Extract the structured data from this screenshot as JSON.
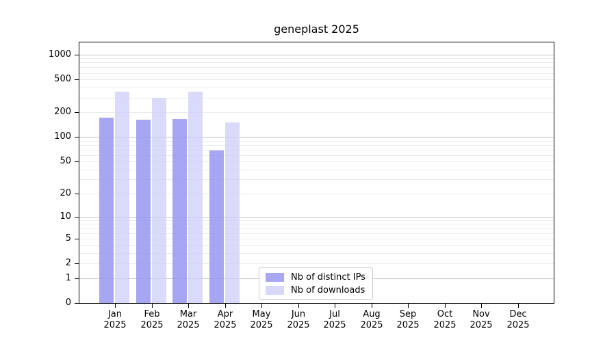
{
  "title": "geneplast 2025",
  "legend": {
    "items": [
      {
        "label": "Nb of distinct IPs",
        "color": "#a9a9f3"
      },
      {
        "label": "Nb of downloads",
        "color": "#d8d8f9"
      }
    ]
  },
  "chart_data": {
    "type": "bar",
    "title": "geneplast 2025",
    "categories": [
      "Jan 2025",
      "Feb 2025",
      "Mar 2025",
      "Apr 2025",
      "May 2025",
      "Jun 2025",
      "Jul 2025",
      "Aug 2025",
      "Sep 2025",
      "Oct 2025",
      "Nov 2025",
      "Dec 2025"
    ],
    "series": [
      {
        "name": "Nb of distinct IPs",
        "color": "#a9a9f3",
        "fill": "rgba(150,150,240,0.85)",
        "values": [
          173,
          161,
          167,
          68,
          0,
          0,
          0,
          0,
          0,
          0,
          0,
          0
        ]
      },
      {
        "name": "Nb of downloads",
        "color": "#d8d8f9",
        "fill": "rgba(205,205,248,0.75)",
        "values": [
          355,
          298,
          355,
          151,
          0,
          0,
          0,
          0,
          0,
          0,
          0,
          0
        ]
      }
    ],
    "yscale": "log1p",
    "yticks": [
      0,
      1,
      2,
      5,
      10,
      20,
      50,
      100,
      200,
      500,
      1000
    ],
    "ylim": [
      0,
      1400
    ],
    "xlabel": "",
    "ylabel": "",
    "grid": {
      "major_color": "#c2c2c2",
      "minor_color": "#ebebeb",
      "major_at": [
        1,
        10,
        100,
        1000
      ]
    },
    "legend_position": "lower-center-inside"
  }
}
